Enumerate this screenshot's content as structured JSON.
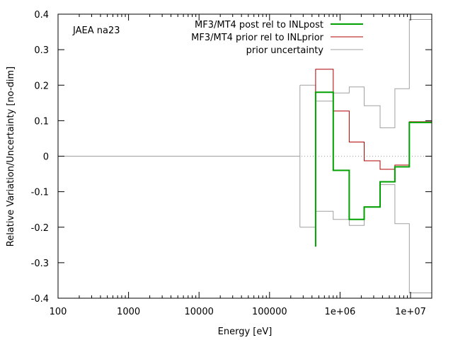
{
  "chart_data": {
    "type": "line",
    "title": "",
    "xlabel": "Energy [eV]",
    "ylabel": "Relative Variation/Uncertainty [no-dim]",
    "x_scale": "log",
    "xlim": [
      100,
      20000000
    ],
    "ylim": [
      -0.4,
      0.4
    ],
    "grid": false,
    "legend_position": "top-right",
    "annotation": "JAEA na23",
    "x_ticks": [
      {
        "value": 100,
        "label": "100"
      },
      {
        "value": 1000,
        "label": "1000"
      },
      {
        "value": 10000,
        "label": "10000"
      },
      {
        "value": 100000,
        "label": "100000"
      },
      {
        "value": 1000000,
        "label": "1e+06"
      },
      {
        "value": 10000000,
        "label": "1e+07"
      }
    ],
    "y_ticks": [
      {
        "value": 0.4,
        "label": "0.4"
      },
      {
        "value": 0.3,
        "label": "0.3"
      },
      {
        "value": 0.2,
        "label": "0.2"
      },
      {
        "value": 0.1,
        "label": "0.1"
      },
      {
        "value": 0,
        "label": "0"
      },
      {
        "value": -0.1,
        "label": "-0.1"
      },
      {
        "value": -0.2,
        "label": "-0.2"
      },
      {
        "value": -0.3,
        "label": "-0.3"
      },
      {
        "value": -0.4,
        "label": "-0.4"
      }
    ],
    "series": [
      {
        "name": "MF3/MT4 post rel to INLpost",
        "color": "#00a000",
        "style": "step",
        "points": [
          [
            450000,
            -0.255
          ],
          [
            450000,
            0.18
          ],
          [
            800000,
            0.18
          ],
          [
            800000,
            -0.04
          ],
          [
            1350000,
            -0.04
          ],
          [
            1350000,
            -0.178
          ],
          [
            2200000,
            -0.178
          ],
          [
            2200000,
            -0.143
          ],
          [
            3700000,
            -0.143
          ],
          [
            3700000,
            -0.072
          ],
          [
            6000000,
            -0.072
          ],
          [
            6000000,
            -0.03
          ],
          [
            9600000,
            -0.03
          ],
          [
            9600000,
            0.095
          ],
          [
            20000000,
            0.095
          ]
        ]
      },
      {
        "name": "MF3/MT4 prior rel to INLprior",
        "color": "#b00000",
        "style": "step",
        "points": [
          [
            450000,
            -0.14
          ],
          [
            450000,
            0.245
          ],
          [
            800000,
            0.245
          ],
          [
            800000,
            0.127
          ],
          [
            1350000,
            0.127
          ],
          [
            1350000,
            0.04
          ],
          [
            2200000,
            0.04
          ],
          [
            2200000,
            -0.013
          ],
          [
            3700000,
            -0.013
          ],
          [
            3700000,
            -0.037
          ],
          [
            6000000,
            -0.037
          ],
          [
            6000000,
            -0.025
          ],
          [
            9600000,
            -0.025
          ],
          [
            9600000,
            0.097
          ],
          [
            20000000,
            0.097
          ]
        ]
      },
      {
        "name": "prior uncertainty",
        "color": "#a0a0a0",
        "style": "step-envelope",
        "baseline_x_end": 270000,
        "points": [
          [
            270000,
            0.2
          ],
          [
            450000,
            0.2
          ],
          [
            450000,
            0.155
          ],
          [
            800000,
            0.155
          ],
          [
            800000,
            0.178
          ],
          [
            1350000,
            0.178
          ],
          [
            1350000,
            0.195
          ],
          [
            2200000,
            0.195
          ],
          [
            2200000,
            0.142
          ],
          [
            3700000,
            0.142
          ],
          [
            3700000,
            0.08
          ],
          [
            6000000,
            0.08
          ],
          [
            6000000,
            0.19
          ],
          [
            9600000,
            0.19
          ],
          [
            9600000,
            0.385
          ],
          [
            20000000,
            0.385
          ]
        ]
      }
    ],
    "zero_line": {
      "style": "dotted",
      "color": "#a0a0a0"
    }
  }
}
